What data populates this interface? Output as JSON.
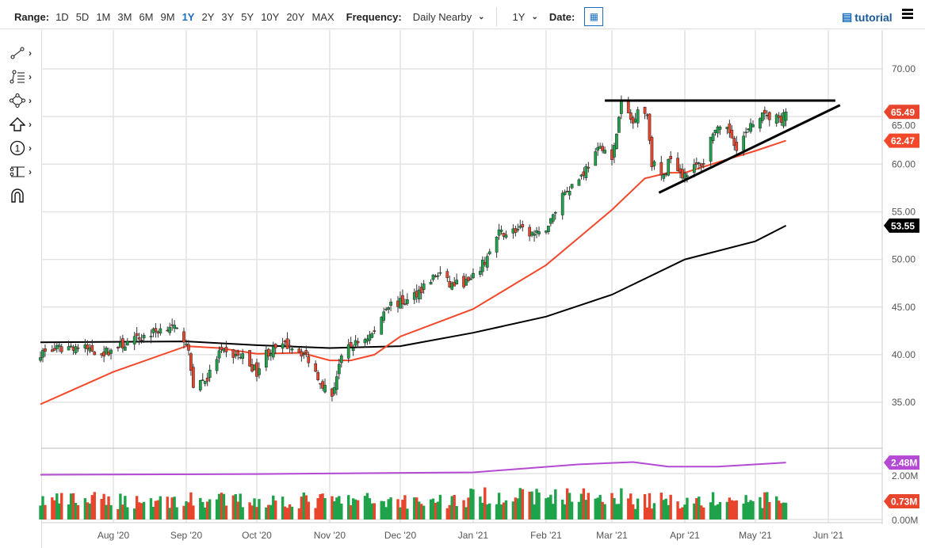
{
  "toolbar": {
    "range_label": "Range:",
    "ranges": [
      "1D",
      "5D",
      "1M",
      "3M",
      "6M",
      "9M",
      "1Y",
      "2Y",
      "3Y",
      "5Y",
      "10Y",
      "20Y",
      "MAX"
    ],
    "active_range": "1Y",
    "frequency_label": "Frequency:",
    "frequency_value": "Daily Nearby",
    "period_value": "1Y",
    "date_label": "Date:",
    "tutorial_label": "tutorial"
  },
  "drawing_tools": [
    "line-tool-icon",
    "fibonacci-tool-icon",
    "shape-tool-icon",
    "arrow-tool-icon",
    "annotation-number-icon",
    "measure-tool-icon",
    "magnet-icon"
  ],
  "colors": {
    "up": "#1ea34a",
    "down": "#e8452c",
    "ma50": "#f4482a",
    "ma200": "#000000",
    "volume_avg": "#b44ad4",
    "accent": "#1a6fc0"
  },
  "chart_data": {
    "type": "candlestick",
    "x_tick_labels": [
      "Aug '20",
      "Sep '20",
      "Oct '20",
      "Nov '20",
      "Dec '20",
      "Jan '21",
      "Feb '21",
      "Mar '21",
      "Apr '21",
      "May '21",
      "Jun '21"
    ],
    "x_ticks": [
      "2020-08-01",
      "2020-09-01",
      "2020-10-01",
      "2020-11-01",
      "2020-12-01",
      "2021-01-01",
      "2021-02-01",
      "2021-03-01",
      "2021-04-01",
      "2021-05-01",
      "2021-06-01"
    ],
    "xlim": [
      "2020-07-01",
      "2021-06-20"
    ],
    "price_ticks": [
      "70.00",
      "65.00",
      "60.00",
      "55.00",
      "50.00",
      "45.00",
      "40.00",
      "35.00"
    ],
    "ylim": [
      32,
      72.5
    ],
    "grid": true,
    "price_path_approx": [
      [
        "2020-07-01",
        40.2
      ],
      [
        "2020-07-15",
        40.9
      ],
      [
        "2020-07-28",
        40.2
      ],
      [
        "2020-08-10",
        41.5
      ],
      [
        "2020-08-25",
        43.1
      ],
      [
        "2020-09-01",
        41.5
      ],
      [
        "2020-09-04",
        36.9
      ],
      [
        "2020-09-10",
        37.5
      ],
      [
        "2020-09-15",
        40.2
      ],
      [
        "2020-09-25",
        39.8
      ],
      [
        "2020-10-01",
        38.2
      ],
      [
        "2020-10-05",
        40.2
      ],
      [
        "2020-10-15",
        41.1
      ],
      [
        "2020-10-22",
        39.9
      ],
      [
        "2020-10-30",
        36.5
      ],
      [
        "2020-11-02",
        35.7
      ],
      [
        "2020-11-05",
        39.0
      ],
      [
        "2020-11-09",
        40.7
      ],
      [
        "2020-11-20",
        42.3
      ],
      [
        "2020-11-25",
        45.2
      ],
      [
        "2020-12-04",
        45.6
      ],
      [
        "2020-12-15",
        48.1
      ],
      [
        "2020-12-18",
        48.5
      ],
      [
        "2020-12-22",
        47.3
      ],
      [
        "2020-12-31",
        47.7
      ],
      [
        "2021-01-06",
        49.8
      ],
      [
        "2021-01-12",
        52.7
      ],
      [
        "2021-01-20",
        53.1
      ],
      [
        "2021-01-29",
        52.5
      ],
      [
        "2021-02-03",
        54.0
      ],
      [
        "2021-02-08",
        56.9
      ],
      [
        "2021-02-15",
        58.5
      ],
      [
        "2021-02-22",
        61.0
      ],
      [
        "2021-02-25",
        61.9
      ],
      [
        "2021-03-01",
        60.2
      ],
      [
        "2021-03-05",
        66.4
      ],
      [
        "2021-03-10",
        64.3
      ],
      [
        "2021-03-12",
        66.0
      ],
      [
        "2021-03-16",
        65.2
      ],
      [
        "2021-03-18",
        60.2
      ],
      [
        "2021-03-23",
        58.5
      ],
      [
        "2021-03-26",
        61.0
      ],
      [
        "2021-03-31",
        58.9
      ],
      [
        "2021-04-06",
        59.8
      ],
      [
        "2021-04-09",
        60.2
      ],
      [
        "2021-04-13",
        63.5
      ],
      [
        "2021-04-20",
        63.4
      ],
      [
        "2021-04-23",
        61.9
      ],
      [
        "2021-04-28",
        63.5
      ],
      [
        "2021-05-03",
        65.2
      ],
      [
        "2021-05-06",
        64.8
      ],
      [
        "2021-05-10",
        65.2
      ],
      [
        "2021-05-12",
        63.9
      ],
      [
        "2021-05-13",
        65.6
      ],
      [
        "2021-05-14",
        65.49
      ]
    ],
    "ma50_approx": [
      [
        "2020-07-01",
        34.8
      ],
      [
        "2020-08-01",
        38.2
      ],
      [
        "2020-09-01",
        40.9
      ],
      [
        "2020-09-15",
        40.7
      ],
      [
        "2020-10-01",
        40.1
      ],
      [
        "2020-10-20",
        40.2
      ],
      [
        "2020-11-01",
        39.4
      ],
      [
        "2020-11-10",
        39.4
      ],
      [
        "2020-11-20",
        40.0
      ],
      [
        "2020-12-01",
        41.9
      ],
      [
        "2021-01-01",
        44.8
      ],
      [
        "2021-02-01",
        49.4
      ],
      [
        "2021-02-15",
        52.3
      ],
      [
        "2021-03-01",
        55.2
      ],
      [
        "2021-03-15",
        58.5
      ],
      [
        "2021-03-25",
        59.1
      ],
      [
        "2021-04-01",
        59.1
      ],
      [
        "2021-04-15",
        60.2
      ],
      [
        "2021-05-01",
        61.4
      ],
      [
        "2021-05-14",
        62.47
      ]
    ],
    "ma200_approx": [
      [
        "2020-07-01",
        41.3
      ],
      [
        "2020-09-01",
        41.4
      ],
      [
        "2020-10-01",
        41.0
      ],
      [
        "2020-11-01",
        40.7
      ],
      [
        "2020-12-01",
        40.9
      ],
      [
        "2021-01-01",
        42.3
      ],
      [
        "2021-02-01",
        44.0
      ],
      [
        "2021-03-01",
        46.3
      ],
      [
        "2021-04-01",
        50.0
      ],
      [
        "2021-05-01",
        51.9
      ],
      [
        "2021-05-14",
        53.55
      ]
    ],
    "trendlines": [
      {
        "from": [
          "2021-02-26",
          66.67
        ],
        "to": [
          "2021-06-04",
          66.67
        ]
      },
      {
        "from": [
          "2021-03-21",
          57.0
        ],
        "to": [
          "2021-06-06",
          66.2
        ]
      }
    ],
    "last_price": "65.49",
    "ma50_last": "62.47",
    "ma200_last": "53.55",
    "volume": {
      "ticks": [
        "2.00M",
        "0.00M"
      ],
      "ylim": [
        0,
        3.1
      ],
      "avg_last": "2.48M",
      "last": "0.73M",
      "avg_approx": [
        [
          "2020-07-01",
          1.95
        ],
        [
          "2020-10-01",
          1.98
        ],
        [
          "2021-01-01",
          2.05
        ],
        [
          "2021-02-15",
          2.4
        ],
        [
          "2021-03-10",
          2.5
        ],
        [
          "2021-03-25",
          2.3
        ],
        [
          "2021-04-15",
          2.3
        ],
        [
          "2021-05-14",
          2.48
        ]
      ]
    }
  }
}
